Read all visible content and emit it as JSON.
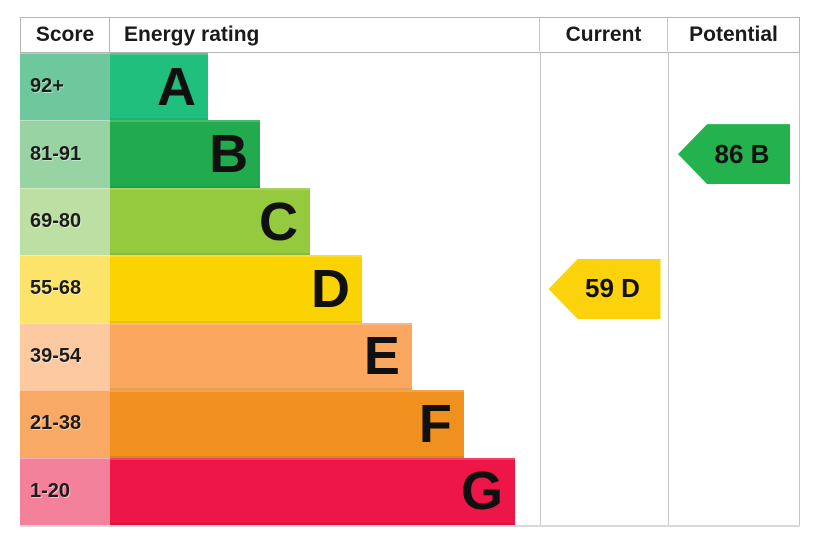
{
  "header": {
    "score": "Score",
    "rating": "Energy rating",
    "current": "Current",
    "potential": "Potential"
  },
  "rows": [
    {
      "score": "92+",
      "letter": "A",
      "band_color": "#20bf7d",
      "score_bg": "#6fc79d",
      "bar_width_pct": 22.8
    },
    {
      "score": "81-91",
      "letter": "B",
      "band_color": "#22ab4e",
      "score_bg": "#97d3a3",
      "bar_width_pct": 34.9
    },
    {
      "score": "69-80",
      "letter": "C",
      "band_color": "#95c93e",
      "score_bg": "#bce0a4",
      "bar_width_pct": 46.5
    },
    {
      "score": "55-68",
      "letter": "D",
      "band_color": "#fbd303",
      "score_bg": "#fce46a",
      "bar_width_pct": 58.6
    },
    {
      "score": "39-54",
      "letter": "E",
      "band_color": "#fba760",
      "score_bg": "#fcc9a0",
      "bar_width_pct": 70.2
    },
    {
      "score": "21-38",
      "letter": "F",
      "band_color": "#f0901f",
      "score_bg": "#f8a963",
      "bar_width_pct": 82.3
    },
    {
      "score": "1-20",
      "letter": "G",
      "band_color": "#ee1649",
      "score_bg": "#f4819b",
      "bar_width_pct": 94.2
    }
  ],
  "current": {
    "label": "59 D",
    "value": 59,
    "letter": "D",
    "color": "#fcd20a"
  },
  "potential": {
    "label": "86 B",
    "value": 86,
    "letter": "B",
    "color": "#23b24d"
  },
  "colors": {
    "table_border": "#b5b5b5",
    "column_divider": "#c6c6c6",
    "background": "#ffffff"
  },
  "chart_data": {
    "type": "bar",
    "title": "Energy rating",
    "orientation": "horizontal",
    "columns": [
      "Score",
      "Energy rating",
      "Current",
      "Potential"
    ],
    "categories": [
      "A",
      "B",
      "C",
      "D",
      "E",
      "F",
      "G"
    ],
    "score_ranges": [
      "92+",
      "81-91",
      "69-80",
      "55-68",
      "39-54",
      "21-38",
      "1-20"
    ],
    "bar_lengths_pct": [
      22.8,
      34.9,
      46.5,
      58.6,
      70.2,
      82.3,
      94.2
    ],
    "band_colors": [
      "#20bf7d",
      "#22ab4e",
      "#95c93e",
      "#fbd303",
      "#fba760",
      "#f0901f",
      "#ee1649"
    ],
    "markers": {
      "current": {
        "value": 59,
        "band": "D",
        "column": "Current",
        "color": "#fcd20a"
      },
      "potential": {
        "value": 86,
        "band": "B",
        "column": "Potential",
        "color": "#23b24d"
      }
    },
    "legend": "none",
    "grid": false
  }
}
